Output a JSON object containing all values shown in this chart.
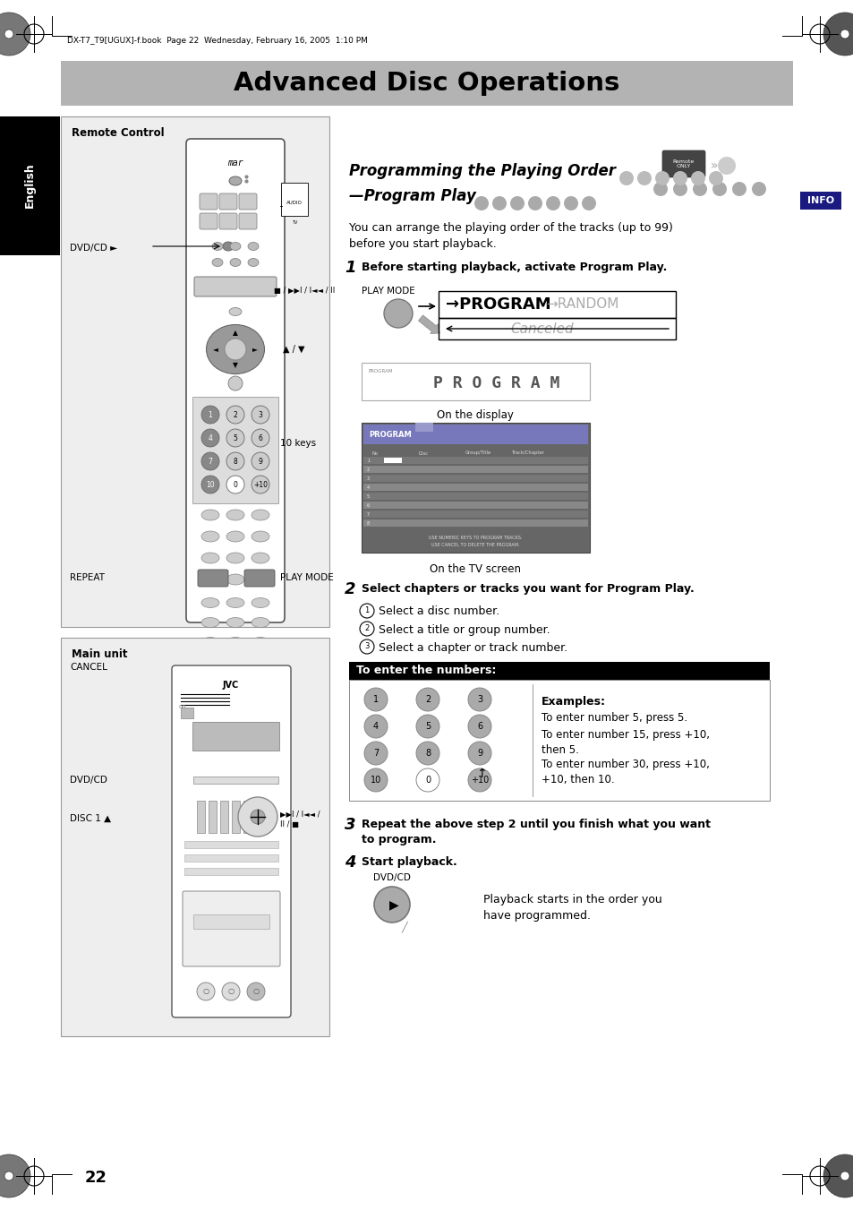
{
  "bg_color": "#ffffff",
  "header_bg": "#b3b3b3",
  "header_text": "Advanced Disc Operations",
  "top_bar_text": "DX-T7_T9[UGUX]-f.book  Page 22  Wednesday, February 16, 2005  1:10 PM",
  "section_title1": "Programming the Playing Order",
  "section_title2": "—Program Play",
  "info_text": "INFO",
  "info_bg": "#1a1a80",
  "body_text1": "You can arrange the playing order of the tracks (up to 99)\nbefore you start playback.",
  "step1_bold": "Before starting playback, activate Program Play.",
  "step2_bold": "Select chapters or tracks you want for Program Play.",
  "step3_bold": "Repeat the above step 2 until you finish what you want\nto program.",
  "step4_bold": "Start playback.",
  "playback_text": "Playback starts in the order you\nhave programmed.",
  "sub1": "Select a disc number.",
  "sub2": "Select a title or group number.",
  "sub3": "Select a chapter or track number.",
  "to_enter_header": "To enter the numbers:",
  "examples_title": "Examples:",
  "example1": "To enter number 5, press 5.",
  "example2": "To enter number 15, press +10,\nthen 5.",
  "example3": "To enter number 30, press +10,\n+10, then 10.",
  "play_mode_label": "PLAY MODE",
  "program_text": "PROGRAM",
  "random_text": "RANDOM",
  "canceled_text": "Canceled",
  "on_display": "On the display",
  "on_tv": "On the TV screen",
  "remote_control_label": "Remote Control",
  "main_unit_label": "Main unit",
  "dvd_cd_label": "DVD/CD ►",
  "dvd_cd_label2": "DVD/CD",
  "disc1_label": "DISC 1 ▲",
  "repeat_label": "REPEAT",
  "cancel_label": "CANCEL",
  "play_mode_label2": "PLAY MODE",
  "keys_10": "10 keys",
  "page_number": "22",
  "sidebar_text": "English"
}
